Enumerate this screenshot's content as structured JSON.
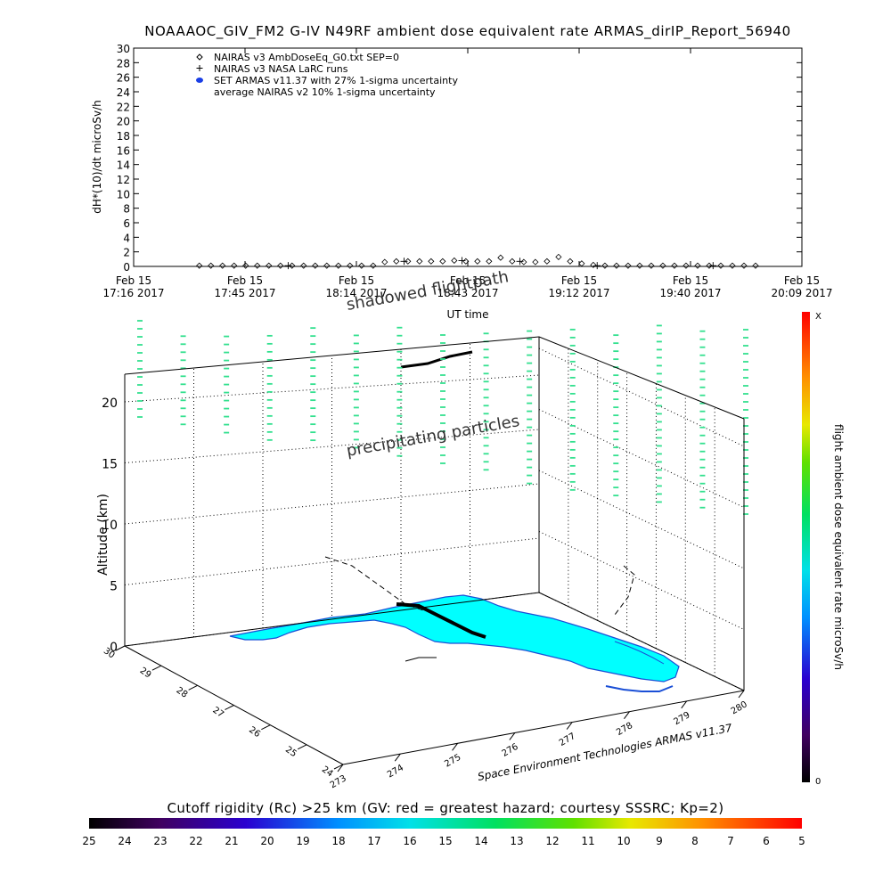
{
  "header": {
    "title": "NOAAAOC_GIV_FM2 G-IV    N49RF   ambient dose equivalent rate ARMAS_dirIP_Report_56940"
  },
  "chart_data": [
    {
      "type": "scatter",
      "ylabel": "dH*(10)/dt microSv/h",
      "xlabel": "UT time",
      "ylim": [
        0,
        30
      ],
      "yticks": [
        "0",
        "2",
        "4",
        "6",
        "8",
        "10",
        "12",
        "14",
        "16",
        "18",
        "20",
        "22",
        "24",
        "26",
        "28",
        "30"
      ],
      "xticks": [
        {
          "date": "Feb 15",
          "time": "17:16 2017"
        },
        {
          "date": "Feb 15",
          "time": "17:45 2017"
        },
        {
          "date": "Feb 15",
          "time": "18:14 2017"
        },
        {
          "date": "Feb 15",
          "time": "18:43 2017"
        },
        {
          "date": "Feb 15",
          "time": "19:12 2017"
        },
        {
          "date": "Feb 15",
          "time": "19:40 2017"
        },
        {
          "date": "Feb 15",
          "time": "20:09 2017"
        }
      ],
      "xlim_minutes": [
        0,
        173
      ],
      "legend": [
        {
          "marker": "diamond",
          "label": "NAIRAS v3 AmbDoseEq_G0.txt SEP=0"
        },
        {
          "marker": "plus",
          "label": "NAIRAS v3 NASA LaRC runs"
        },
        {
          "marker": "dot",
          "label": "SET ARMAS v11.37 with 27% 1-sigma uncertainty"
        },
        {
          "marker": "none",
          "label": "average NAIRAS v2 10% 1-sigma uncertainty"
        }
      ],
      "legend_position": "top-left",
      "series": [
        {
          "name": "NAIRAS v3 AmbDoseEq_G0.txt SEP=0",
          "x_minutes": [
            17,
            20,
            23,
            26,
            29,
            32,
            35,
            38,
            41,
            44,
            47,
            50,
            53,
            56,
            59,
            62,
            65,
            68,
            71,
            74,
            77,
            80,
            83,
            86,
            89,
            92,
            95,
            98,
            101,
            104,
            107,
            110,
            113,
            116,
            119,
            122,
            125,
            128,
            131,
            134,
            137,
            140,
            143,
            146,
            149,
            152,
            155,
            158,
            161
          ],
          "values": [
            0.1,
            0.1,
            0.1,
            0.1,
            0.1,
            0.1,
            0.1,
            0.1,
            0.1,
            0.1,
            0.1,
            0.1,
            0.1,
            0.1,
            0.1,
            0.1,
            0.6,
            0.7,
            0.7,
            0.7,
            0.7,
            0.7,
            0.8,
            0.7,
            0.7,
            0.7,
            1.2,
            0.7,
            0.6,
            0.6,
            0.7,
            1.3,
            0.7,
            0.4,
            0.2,
            0.1,
            0.1,
            0.1,
            0.1,
            0.1,
            0.1,
            0.1,
            0.1,
            0.1,
            0.1,
            0.1,
            0.1,
            0.1,
            0.1
          ]
        },
        {
          "name": "NAIRAS v3 NASA LaRC runs",
          "x_minutes": [
            40,
            70,
            85,
            100,
            120,
            150
          ],
          "values": [
            0.1,
            0.7,
            0.8,
            0.7,
            0.1,
            0.1
          ]
        }
      ]
    },
    {
      "type": "scatter",
      "projection": "3d",
      "zlabel": "Altitude (km)",
      "zticks": [
        "0",
        "5",
        "10",
        "15",
        "20"
      ],
      "yaxis_ticks": [
        "24",
        "25",
        "26",
        "27",
        "28",
        "29",
        "30"
      ],
      "xaxis_ticks": [
        "273",
        "274",
        "275",
        "276",
        "277",
        "278",
        "279",
        "280"
      ],
      "overlay_labels": [
        "shadowed flightpath",
        "precipitating particles"
      ],
      "credit": "Space Environment Technologies ARMAS v11.37",
      "colorbar": {
        "label": "flight ambient dose equivalent rate microSv/h",
        "top": "X",
        "bottom": "0"
      }
    },
    {
      "type": "colorbar",
      "title": "Cutoff rigidity (Rc) >25 km (GV: red = greatest hazard; courtesy SSSRC; Kp=2)",
      "ticks": [
        "25",
        "24",
        "23",
        "22",
        "21",
        "20",
        "19",
        "18",
        "17",
        "16",
        "15",
        "14",
        "13",
        "12",
        "11",
        "10",
        "9",
        "8",
        "7",
        "6",
        "5"
      ]
    }
  ],
  "colors": {
    "land": "#00ffff",
    "particles": "#33e08f",
    "flight": "#000000",
    "coast": "#1a4fd6"
  }
}
